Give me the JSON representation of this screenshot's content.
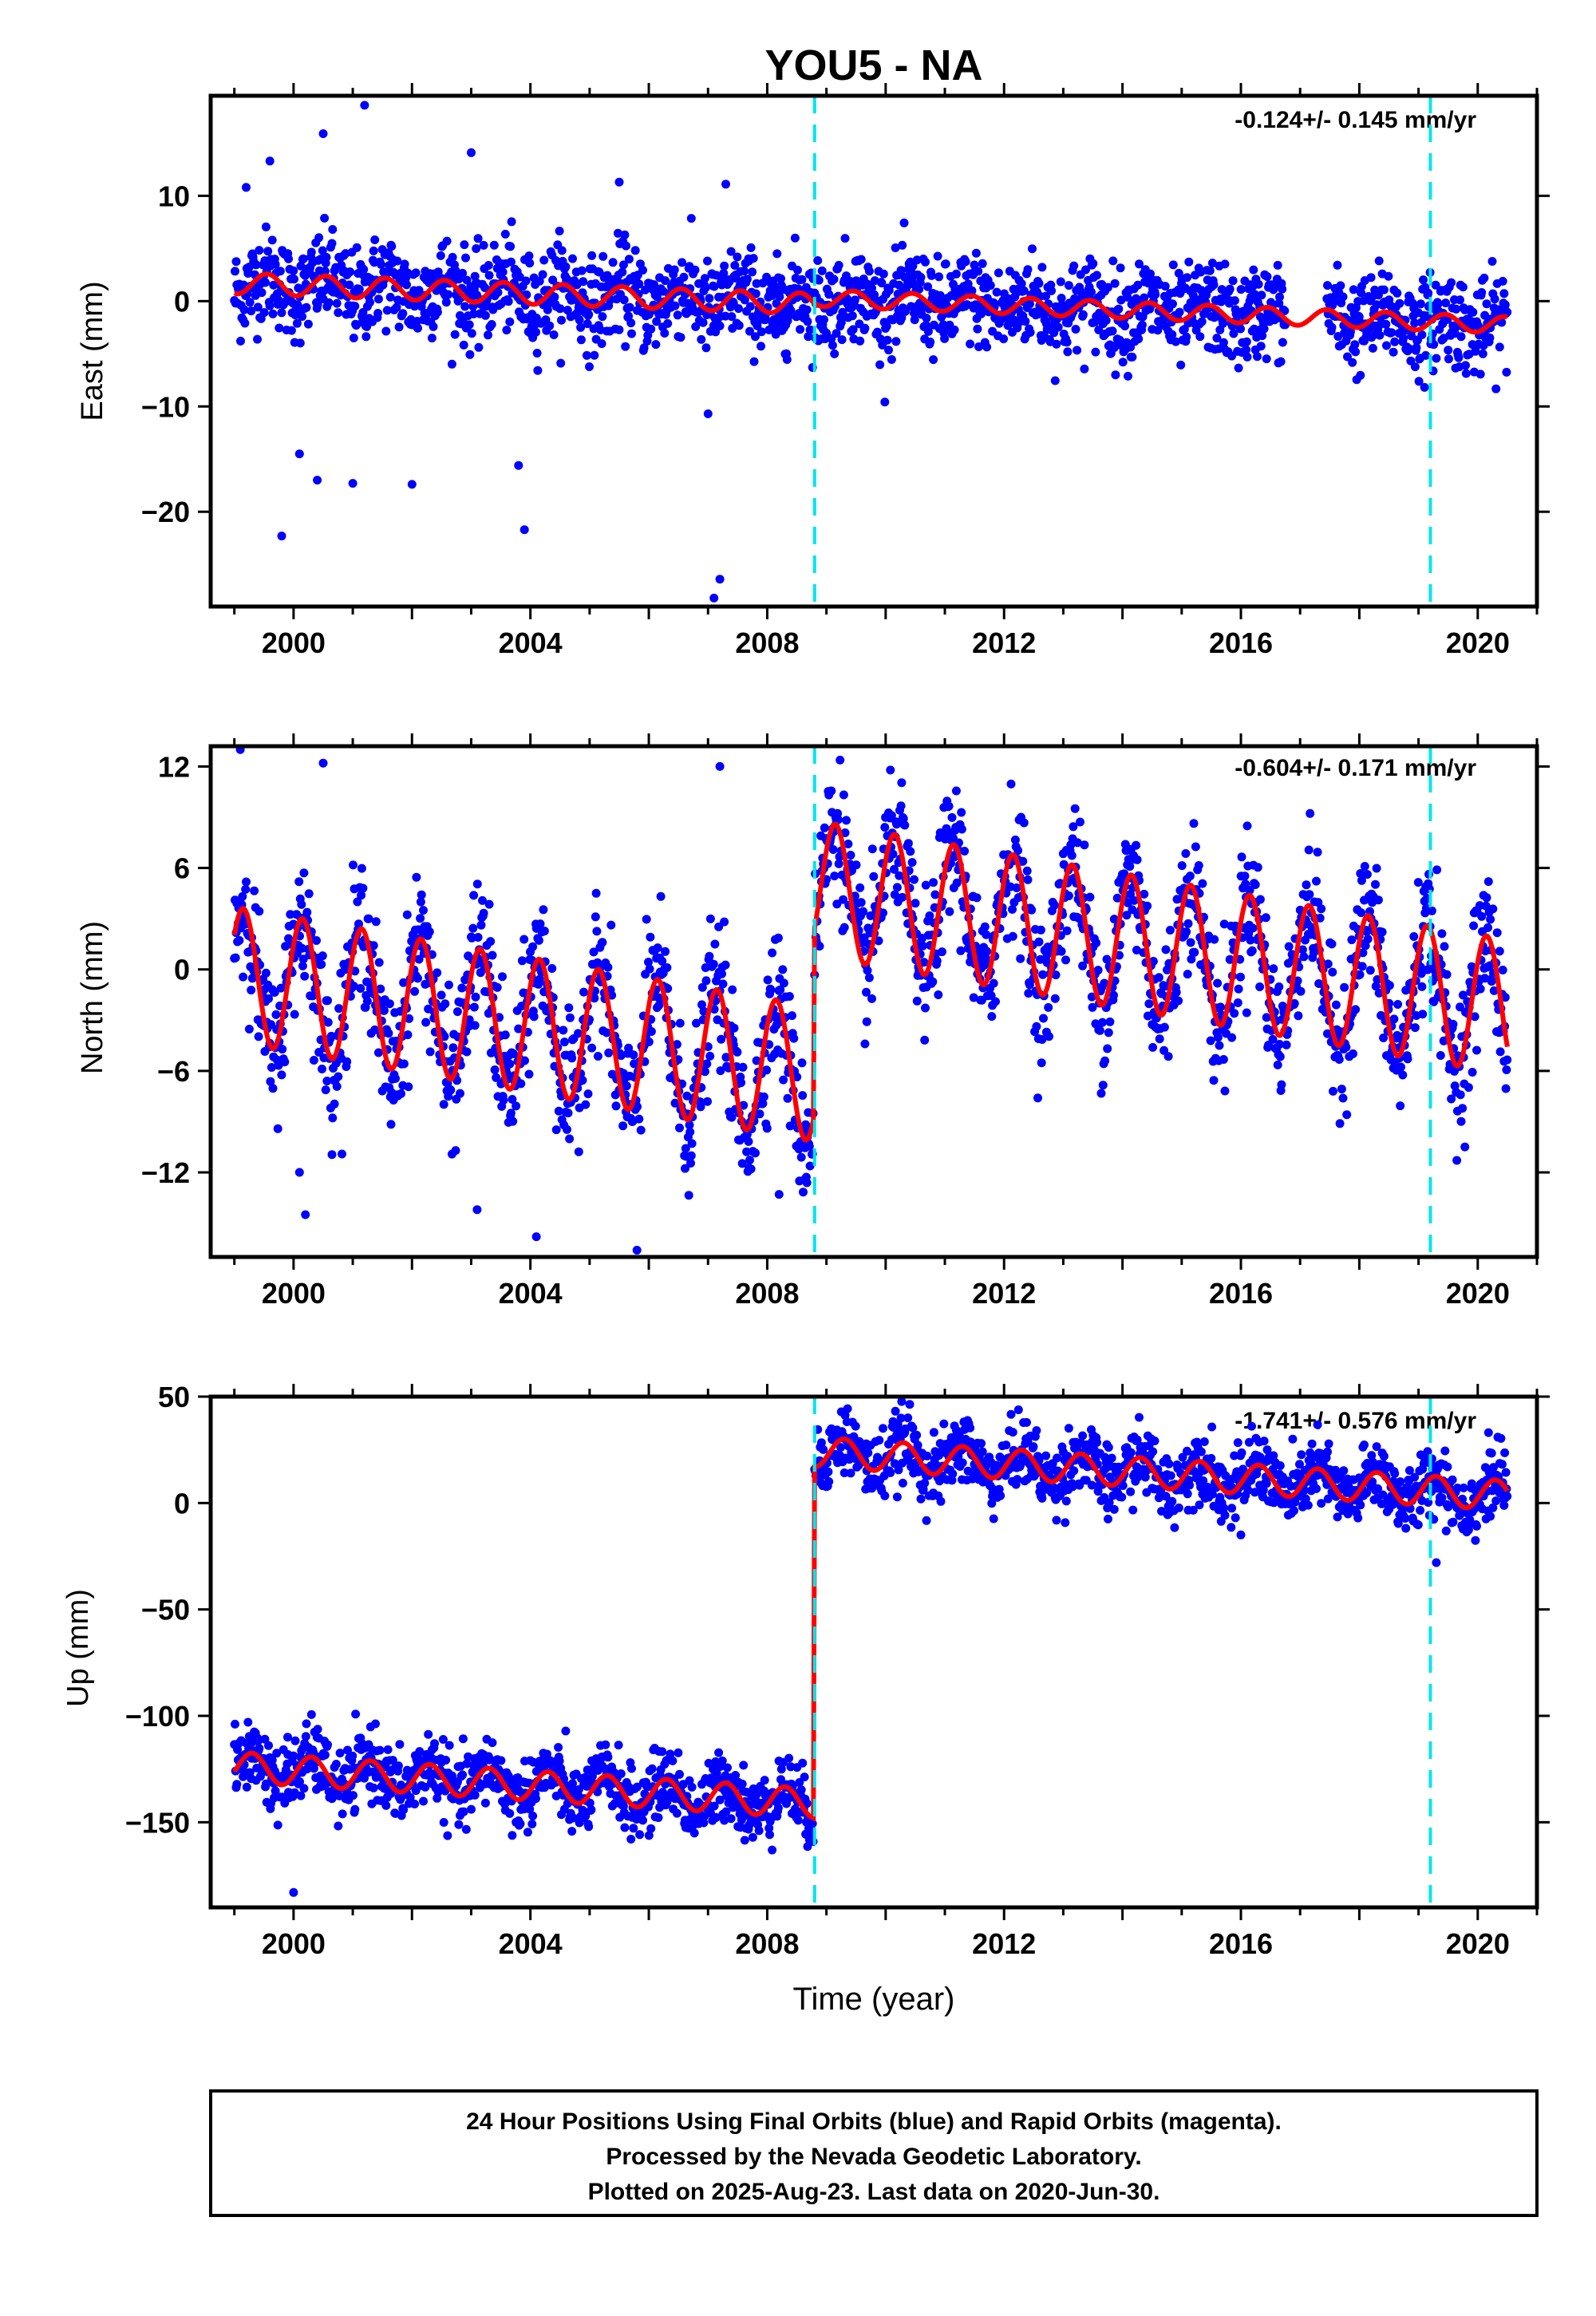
{
  "title": "YOU5 - NA",
  "colors": {
    "data": "#0000ff",
    "model": "#ff0000",
    "offset_line": "#00e5ee",
    "frame": "#000000"
  },
  "chart_data": [
    {
      "type": "scatter",
      "component": "East",
      "ylabel": "East (mm)",
      "rate_label": "-0.124+/- 0.145 mm/yr",
      "xlim": [
        1998.6,
        2021.0
      ],
      "ylim": [
        -29,
        19.5
      ],
      "yticks": [
        10,
        0,
        -10,
        -20
      ],
      "ytick_labels": [
        "10",
        "0",
        "−10",
        "−20"
      ],
      "xticks": [
        2000,
        2004,
        2008,
        2012,
        2016,
        2020
      ],
      "xtick_labels": [
        "2000",
        "2004",
        "2008",
        "2012",
        "2016",
        "2020"
      ],
      "offset_epochs": [
        2008.8,
        2019.2
      ],
      "model": {
        "segments": [
          {
            "start": 1999.0,
            "end": 2008.78,
            "intercept": 1.7,
            "slope": -0.2,
            "amp": 1.0,
            "phase": 0.3
          },
          {
            "start": 2008.8,
            "end": 2020.5,
            "intercept": 0.3,
            "slope": -0.22,
            "amp": 0.8,
            "phase": 0.2
          }
        ]
      },
      "outliers": [
        [
          1999.2,
          10.8
        ],
        [
          1999.6,
          13.3
        ],
        [
          2000.5,
          15.9
        ],
        [
          2001.2,
          18.6
        ],
        [
          2003.0,
          14.1
        ],
        [
          2005.5,
          11.3
        ],
        [
          2007.3,
          11.1
        ],
        [
          1999.8,
          -22.3
        ],
        [
          2003.9,
          -21.7
        ],
        [
          2003.8,
          -15.6
        ],
        [
          2000.4,
          -17.0
        ],
        [
          2001.0,
          -17.3
        ],
        [
          2002.0,
          -17.4
        ],
        [
          2007.2,
          -26.4
        ],
        [
          2007.1,
          -28.2
        ],
        [
          2000.1,
          -14.5
        ],
        [
          2007.0,
          -10.7
        ]
      ]
    },
    {
      "type": "scatter",
      "component": "North",
      "ylabel": "North (mm)",
      "rate_label": "-0.604+/- 0.171 mm/yr",
      "xlim": [
        1998.6,
        2021.0
      ],
      "ylim": [
        -17,
        13.2
      ],
      "yticks": [
        12,
        6,
        0,
        -6,
        -12
      ],
      "ytick_labels": [
        "12",
        "6",
        "0",
        "−6",
        "−12"
      ],
      "xticks": [
        2000,
        2004,
        2008,
        2012,
        2016,
        2020
      ],
      "xtick_labels": [
        "2000",
        "2004",
        "2008",
        "2012",
        "2016",
        "2020"
      ],
      "offset_epochs": [
        2008.8,
        2019.2
      ],
      "model": {
        "segments": [
          {
            "start": 1999.0,
            "end": 2008.78,
            "intercept": -0.3,
            "slope": -0.6,
            "amp": 4.0,
            "phase": -0.1
          },
          {
            "start": 2008.8,
            "end": 2020.5,
            "intercept": 4.8,
            "slope": -0.6,
            "amp": 4.0,
            "phase": -0.1
          }
        ]
      },
      "outliers": [
        [
          1999.1,
          13.0
        ],
        [
          2000.5,
          12.2
        ],
        [
          2007.2,
          12.0
        ],
        [
          2000.1,
          -12.0
        ],
        [
          2000.2,
          -14.5
        ],
        [
          2003.1,
          -14.2
        ],
        [
          2004.1,
          -15.8
        ],
        [
          2005.8,
          -16.6
        ],
        [
          2008.2,
          -13.3
        ]
      ]
    },
    {
      "type": "scatter",
      "component": "Up",
      "ylabel": "Up (mm)",
      "xlabel": "Time (year)",
      "rate_label": "-1.741+/- 0.576 mm/yr",
      "xlim": [
        1998.6,
        2021.0
      ],
      "ylim": [
        -190,
        50
      ],
      "yticks": [
        50,
        0,
        -50,
        -100,
        -150
      ],
      "ytick_labels": [
        "50",
        "0",
        "−50",
        "−100",
        "−150"
      ],
      "xticks": [
        2000,
        2004,
        2008,
        2012,
        2016,
        2020
      ],
      "xtick_labels": [
        "2000",
        "2004",
        "2008",
        "2012",
        "2016",
        "2020"
      ],
      "offset_epochs": [
        2008.8,
        2019.2
      ],
      "model": {
        "segments": [
          {
            "start": 1999.0,
            "end": 2008.78,
            "intercept": -124,
            "slope": -1.75,
            "amp": 7.0,
            "phase": 0.05
          },
          {
            "start": 2008.8,
            "end": 2020.5,
            "intercept": 24,
            "slope": -1.75,
            "amp": 7.0,
            "phase": 0.05
          }
        ]
      },
      "outliers": [
        [
          2000.0,
          -183.0
        ],
        [
          2019.3,
          -28.0
        ],
        [
          2016.0,
          -15.0
        ],
        [
          1999.9,
          -110.0
        ]
      ]
    }
  ],
  "footer": {
    "line1": "24 Hour Positions Using Final Orbits (blue) and Rapid Orbits (magenta).",
    "line2": "Processed by the Nevada Geodetic Laboratory.",
    "line3": "Plotted on 2025-Aug-23. Last data on 2020-Jun-30."
  }
}
